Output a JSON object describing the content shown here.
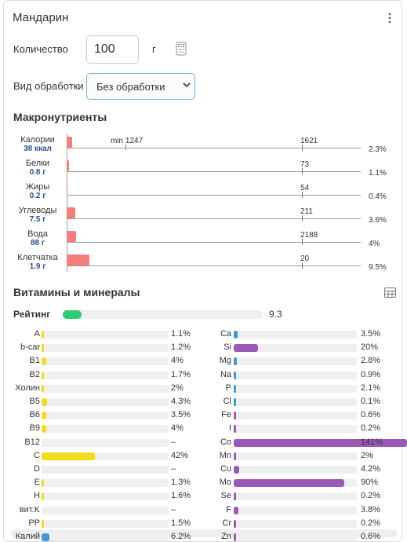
{
  "header": {
    "title": "Мандарин"
  },
  "form": {
    "quantity_label": "Количество",
    "quantity_value": "100",
    "quantity_unit": "г",
    "processing_label": "Вид обработки",
    "processing_value": "Без обработки"
  },
  "macros": {
    "title": "Макронутриенты",
    "min_marker": "min 1247",
    "rows": [
      {
        "name": "Калории",
        "amount": "38 ккал",
        "value": 2.3,
        "value_label": "2.3%",
        "reference": 1621
      },
      {
        "name": "Белки",
        "amount": "0.8 г",
        "value": 1.1,
        "value_label": "1.1%",
        "reference": 73
      },
      {
        "name": "Жиры",
        "amount": "0.2 г",
        "value": 0.4,
        "value_label": "0.4%",
        "reference": 54
      },
      {
        "name": "Углеводы",
        "amount": "7.5 г",
        "value": 3.6,
        "value_label": "3.6%",
        "reference": 211
      },
      {
        "name": "Вода",
        "amount": "88 г",
        "value": 4,
        "value_label": "4%",
        "reference": 2188
      },
      {
        "name": "Клетчатка",
        "amount": "1.9 г",
        "value": 9.5,
        "value_label": "9.5%",
        "reference": 20
      }
    ]
  },
  "vitamins": {
    "title": "Витамины и минералы",
    "rating_label": "Рейтинг",
    "rating": 9.3,
    "left": [
      {
        "name": "A",
        "value": 1.1,
        "value_label": "1.1%",
        "color": "#f2dc1e"
      },
      {
        "name": "b-car",
        "value": 1.2,
        "value_label": "1.2%",
        "color": "#f2dc1e"
      },
      {
        "name": "B1",
        "value": 4,
        "value_label": "4%",
        "color": "#f2dc1e"
      },
      {
        "name": "B2",
        "value": 1.7,
        "value_label": "1.7%",
        "color": "#f2dc1e"
      },
      {
        "name": "Холин",
        "value": 2,
        "value_label": "2%",
        "color": "#f2dc1e"
      },
      {
        "name": "B5",
        "value": 4.3,
        "value_label": "4.3%",
        "color": "#f2dc1e"
      },
      {
        "name": "B6",
        "value": 3.5,
        "value_label": "3.5%",
        "color": "#f2dc1e"
      },
      {
        "name": "B9",
        "value": 4,
        "value_label": "4%",
        "color": "#f2dc1e"
      },
      {
        "name": "B12",
        "value": null,
        "value_label": "–",
        "color": "#f2dc1e"
      },
      {
        "name": "C",
        "value": 42,
        "value_label": "42%",
        "color": "#f2dc1e"
      },
      {
        "name": "D",
        "value": null,
        "value_label": "–",
        "color": "#f2dc1e"
      },
      {
        "name": "E",
        "value": 1.3,
        "value_label": "1.3%",
        "color": "#f2dc1e"
      },
      {
        "name": "H",
        "value": 1.6,
        "value_label": "1.6%",
        "color": "#f2dc1e"
      },
      {
        "name": "вит.K",
        "value": null,
        "value_label": "–",
        "color": "#f2dc1e"
      },
      {
        "name": "PP",
        "value": 1.5,
        "value_label": "1.5%",
        "color": "#f2dc1e"
      },
      {
        "name": "Калий",
        "value": 6.2,
        "value_label": "6.2%",
        "color": "#3f98d8"
      }
    ],
    "right": [
      {
        "name": "Ca",
        "value": 3.5,
        "value_label": "3.5%",
        "color": "#3f98d8"
      },
      {
        "name": "Si",
        "value": 20,
        "value_label": "20%",
        "color": "#9b59b6"
      },
      {
        "name": "Mg",
        "value": 2.8,
        "value_label": "2.8%",
        "color": "#3f98d8"
      },
      {
        "name": "Na",
        "value": 0.9,
        "value_label": "0.9%",
        "color": "#3f98d8"
      },
      {
        "name": "P",
        "value": 2.1,
        "value_label": "2.1%",
        "color": "#3f98d8"
      },
      {
        "name": "Cl",
        "value": 0.1,
        "value_label": "0.1%",
        "color": "#3f98d8"
      },
      {
        "name": "Fe",
        "value": 0.6,
        "value_label": "0.6%",
        "color": "#9b59b6"
      },
      {
        "name": "I",
        "value": 0.2,
        "value_label": "0.2%",
        "color": "#9b59b6"
      },
      {
        "name": "Co",
        "value": 141,
        "value_label": "141%",
        "color": "#9b59b6"
      },
      {
        "name": "Mn",
        "value": 2,
        "value_label": "2%",
        "color": "#9b59b6"
      },
      {
        "name": "Cu",
        "value": 4.2,
        "value_label": "4.2%",
        "color": "#9b59b6"
      },
      {
        "name": "Mo",
        "value": 90,
        "value_label": "90%",
        "color": "#9b59b6"
      },
      {
        "name": "Se",
        "value": 0.2,
        "value_label": "0.2%",
        "color": "#9b59b6"
      },
      {
        "name": "F",
        "value": 3.8,
        "value_label": "3.8%",
        "color": "#9b59b6"
      },
      {
        "name": "Cr",
        "value": 0.2,
        "value_label": "0.2%",
        "color": "#9b59b6"
      },
      {
        "name": "Zn",
        "value": 0.6,
        "value_label": "0.6%",
        "color": "#9b59b6"
      }
    ]
  }
}
